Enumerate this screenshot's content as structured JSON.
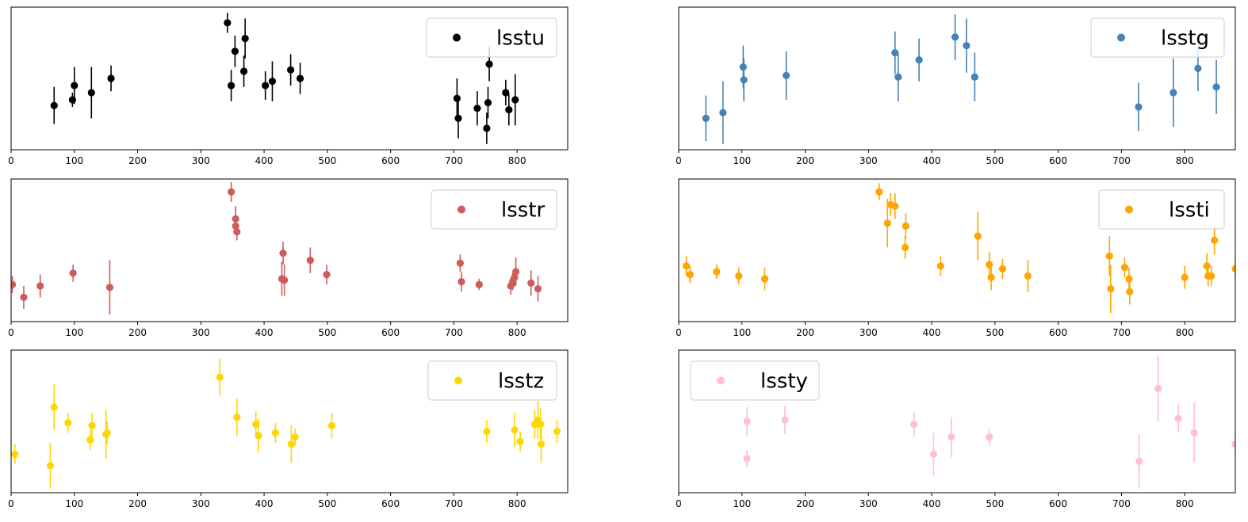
{
  "chart_data": [
    {
      "type": "scatter",
      "title": "",
      "xlabel": "",
      "ylabel": "",
      "xlim": [
        0,
        880
      ],
      "ylim": [
        0,
        100
      ],
      "xticks": [
        "0",
        "100",
        "200",
        "300",
        "400",
        "500",
        "600",
        "700",
        "800"
      ],
      "legend": {
        "label": "lsstu",
        "loc": "upper right"
      },
      "color": "#000000",
      "points": [
        {
          "x": 68,
          "y": 31,
          "err": 13
        },
        {
          "x": 97,
          "y": 35,
          "err": 5
        },
        {
          "x": 100,
          "y": 45,
          "err": 13
        },
        {
          "x": 127,
          "y": 40,
          "err": 18
        },
        {
          "x": 158,
          "y": 50,
          "err": 9
        },
        {
          "x": 342,
          "y": 89,
          "err": 7
        },
        {
          "x": 348,
          "y": 45,
          "err": 11
        },
        {
          "x": 354,
          "y": 69,
          "err": 11
        },
        {
          "x": 368,
          "y": 55,
          "err": 11
        },
        {
          "x": 370,
          "y": 78,
          "err": 14
        },
        {
          "x": 402,
          "y": 45,
          "err": 10
        },
        {
          "x": 413,
          "y": 48,
          "err": 14
        },
        {
          "x": 442,
          "y": 56,
          "err": 11
        },
        {
          "x": 457,
          "y": 50,
          "err": 11
        },
        {
          "x": 705,
          "y": 36,
          "err": 14
        },
        {
          "x": 707,
          "y": 22,
          "err": 14
        },
        {
          "x": 737,
          "y": 29,
          "err": 12
        },
        {
          "x": 752,
          "y": 15,
          "err": 11
        },
        {
          "x": 754,
          "y": 33,
          "err": 11
        },
        {
          "x": 756,
          "y": 60,
          "err": 12
        },
        {
          "x": 782,
          "y": 40,
          "err": 9
        },
        {
          "x": 787,
          "y": 28,
          "err": 11
        },
        {
          "x": 797,
          "y": 35,
          "err": 18
        }
      ]
    },
    {
      "type": "scatter",
      "title": "",
      "xlabel": "",
      "ylabel": "",
      "xlim": [
        0,
        880
      ],
      "ylim": [
        0,
        100
      ],
      "xticks": [
        "0",
        "100",
        "200",
        "300",
        "400",
        "500",
        "600",
        "700",
        "800"
      ],
      "legend": {
        "label": "lsstg",
        "loc": "upper right"
      },
      "color": "#4682b4",
      "points": [
        {
          "x": 43,
          "y": 22,
          "err": 16
        },
        {
          "x": 70,
          "y": 26,
          "err": 22
        },
        {
          "x": 102,
          "y": 58,
          "err": 15
        },
        {
          "x": 103,
          "y": 49,
          "err": 15
        },
        {
          "x": 170,
          "y": 52,
          "err": 17
        },
        {
          "x": 342,
          "y": 68,
          "err": 15
        },
        {
          "x": 347,
          "y": 51,
          "err": 17
        },
        {
          "x": 380,
          "y": 63,
          "err": 15
        },
        {
          "x": 437,
          "y": 79,
          "err": 16
        },
        {
          "x": 455,
          "y": 73,
          "err": 19
        },
        {
          "x": 468,
          "y": 51,
          "err": 17
        },
        {
          "x": 727,
          "y": 30,
          "err": 17
        },
        {
          "x": 782,
          "y": 40,
          "err": 24
        },
        {
          "x": 821,
          "y": 57,
          "err": 16
        },
        {
          "x": 850,
          "y": 44,
          "err": 19
        }
      ]
    },
    {
      "type": "scatter",
      "title": "",
      "xlabel": "",
      "ylabel": "",
      "xlim": [
        0,
        880
      ],
      "ylim": [
        0,
        100
      ],
      "xticks": [
        "0",
        "100",
        "200",
        "300",
        "400",
        "500",
        "600",
        "700",
        "800"
      ],
      "legend": {
        "label": "lsstr",
        "loc": "upper right"
      },
      "color": "#cd5c5c",
      "points": [
        {
          "x": 2,
          "y": 26,
          "err": 6
        },
        {
          "x": 20,
          "y": 17,
          "err": 8
        },
        {
          "x": 46,
          "y": 25,
          "err": 8
        },
        {
          "x": 98,
          "y": 34,
          "err": 6
        },
        {
          "x": 156,
          "y": 24,
          "err": 19
        },
        {
          "x": 348,
          "y": 91,
          "err": 7
        },
        {
          "x": 355,
          "y": 72,
          "err": 9
        },
        {
          "x": 355,
          "y": 67,
          "err": 6
        },
        {
          "x": 357,
          "y": 63,
          "err": 6
        },
        {
          "x": 428,
          "y": 30,
          "err": 12
        },
        {
          "x": 430,
          "y": 48,
          "err": 8
        },
        {
          "x": 432,
          "y": 29,
          "err": 11
        },
        {
          "x": 473,
          "y": 43,
          "err": 9
        },
        {
          "x": 499,
          "y": 33,
          "err": 7
        },
        {
          "x": 710,
          "y": 41,
          "err": 6
        },
        {
          "x": 712,
          "y": 28,
          "err": 7
        },
        {
          "x": 740,
          "y": 26,
          "err": 4
        },
        {
          "x": 790,
          "y": 25,
          "err": 6
        },
        {
          "x": 793,
          "y": 28,
          "err": 6
        },
        {
          "x": 796,
          "y": 31,
          "err": 6
        },
        {
          "x": 798,
          "y": 35,
          "err": 10
        },
        {
          "x": 822,
          "y": 27,
          "err": 9
        },
        {
          "x": 833,
          "y": 23,
          "err": 9
        }
      ]
    },
    {
      "type": "scatter",
      "title": "",
      "xlabel": "",
      "ylabel": "",
      "xlim": [
        0,
        880
      ],
      "ylim": [
        0,
        100
      ],
      "xticks": [
        "0",
        "100",
        "200",
        "300",
        "400",
        "500",
        "600",
        "700",
        "800"
      ],
      "legend": {
        "label": "lssti",
        "loc": "upper right"
      },
      "color": "#ffa500",
      "points": [
        {
          "x": 12,
          "y": 39,
          "err": 7
        },
        {
          "x": 18,
          "y": 33,
          "err": 6
        },
        {
          "x": 60,
          "y": 35,
          "err": 5
        },
        {
          "x": 95,
          "y": 32,
          "err": 6
        },
        {
          "x": 136,
          "y": 30,
          "err": 8
        },
        {
          "x": 317,
          "y": 91,
          "err": 6
        },
        {
          "x": 330,
          "y": 69,
          "err": 17
        },
        {
          "x": 335,
          "y": 82,
          "err": 8
        },
        {
          "x": 342,
          "y": 81,
          "err": 9
        },
        {
          "x": 358,
          "y": 52,
          "err": 8
        },
        {
          "x": 359,
          "y": 67,
          "err": 9
        },
        {
          "x": 414,
          "y": 39,
          "err": 7
        },
        {
          "x": 473,
          "y": 60,
          "err": 17
        },
        {
          "x": 491,
          "y": 40,
          "err": 9
        },
        {
          "x": 494,
          "y": 31,
          "err": 9
        },
        {
          "x": 512,
          "y": 37,
          "err": 7
        },
        {
          "x": 552,
          "y": 32,
          "err": 11
        },
        {
          "x": 681,
          "y": 46,
          "err": 14
        },
        {
          "x": 683,
          "y": 23,
          "err": 17
        },
        {
          "x": 705,
          "y": 38,
          "err": 7
        },
        {
          "x": 712,
          "y": 30,
          "err": 8
        },
        {
          "x": 713,
          "y": 21,
          "err": 9
        },
        {
          "x": 800,
          "y": 31,
          "err": 8
        },
        {
          "x": 835,
          "y": 39,
          "err": 9
        },
        {
          "x": 837,
          "y": 32,
          "err": 7
        },
        {
          "x": 842,
          "y": 32,
          "err": 7
        },
        {
          "x": 847,
          "y": 57,
          "err": 10
        },
        {
          "x": 880,
          "y": 37,
          "err": 7
        }
      ]
    },
    {
      "type": "scatter",
      "title": "",
      "xlabel": "",
      "ylabel": "",
      "xlim": [
        0,
        880
      ],
      "ylim": [
        0,
        100
      ],
      "xticks": [
        "0",
        "100",
        "200",
        "300",
        "400",
        "500",
        "600",
        "700",
        "800"
      ],
      "legend": {
        "label": "lsstz",
        "loc": "upper right"
      },
      "color": "#ffd700",
      "points": [
        {
          "x": 6,
          "y": 27,
          "err": 7
        },
        {
          "x": 62,
          "y": 19,
          "err": 16
        },
        {
          "x": 68,
          "y": 60,
          "err": 16
        },
        {
          "x": 90,
          "y": 49,
          "err": 7
        },
        {
          "x": 125,
          "y": 37,
          "err": 7
        },
        {
          "x": 128,
          "y": 47,
          "err": 9
        },
        {
          "x": 150,
          "y": 41,
          "err": 17
        },
        {
          "x": 152,
          "y": 42,
          "err": 8
        },
        {
          "x": 330,
          "y": 81,
          "err": 13
        },
        {
          "x": 357,
          "y": 53,
          "err": 13
        },
        {
          "x": 387,
          "y": 48,
          "err": 9
        },
        {
          "x": 391,
          "y": 40,
          "err": 12
        },
        {
          "x": 418,
          "y": 42,
          "err": 7
        },
        {
          "x": 443,
          "y": 34,
          "err": 13
        },
        {
          "x": 449,
          "y": 39,
          "err": 6
        },
        {
          "x": 507,
          "y": 47,
          "err": 9
        },
        {
          "x": 752,
          "y": 43,
          "err": 8
        },
        {
          "x": 796,
          "y": 44,
          "err": 12
        },
        {
          "x": 805,
          "y": 36,
          "err": 7
        },
        {
          "x": 828,
          "y": 48,
          "err": 10
        },
        {
          "x": 833,
          "y": 51,
          "err": 13
        },
        {
          "x": 837,
          "y": 48,
          "err": 11
        },
        {
          "x": 838,
          "y": 34,
          "err": 13
        },
        {
          "x": 863,
          "y": 43,
          "err": 8
        }
      ]
    },
    {
      "type": "scatter",
      "title": "",
      "xlabel": "",
      "ylabel": "",
      "xlim": [
        0,
        880
      ],
      "ylim": [
        0,
        100
      ],
      "xticks": [
        "0",
        "100",
        "200",
        "300",
        "400",
        "500",
        "600",
        "700",
        "800"
      ],
      "legend": {
        "label": "lssty",
        "loc": "upper left"
      },
      "color": "#ffc0cb",
      "points": [
        {
          "x": 108,
          "y": 50,
          "err": 10
        },
        {
          "x": 108,
          "y": 24,
          "err": 6
        },
        {
          "x": 168,
          "y": 51,
          "err": 10
        },
        {
          "x": 372,
          "y": 48,
          "err": 9
        },
        {
          "x": 403,
          "y": 27,
          "err": 15
        },
        {
          "x": 431,
          "y": 39,
          "err": 14
        },
        {
          "x": 491,
          "y": 39,
          "err": 6
        },
        {
          "x": 728,
          "y": 22,
          "err": 19
        },
        {
          "x": 758,
          "y": 73,
          "err": 23
        },
        {
          "x": 790,
          "y": 52,
          "err": 10
        },
        {
          "x": 815,
          "y": 42,
          "err": 21
        },
        {
          "x": 880,
          "y": 34,
          "err": 7
        }
      ]
    }
  ]
}
